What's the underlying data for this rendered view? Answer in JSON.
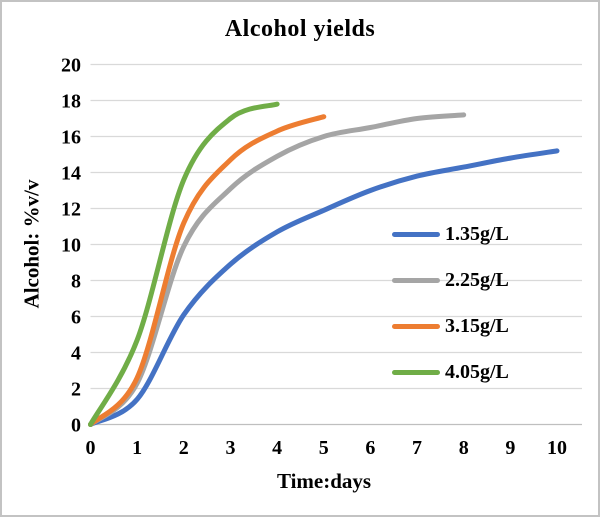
{
  "chart_data": {
    "type": "line",
    "title": "Alcohol yields",
    "xlabel": "Time:days",
    "ylabel": "Alcohol: %v/v",
    "xlim": [
      0,
      10.5
    ],
    "ylim": [
      0,
      20
    ],
    "x_ticks": [
      0,
      1,
      2,
      3,
      4,
      5,
      6,
      7,
      8,
      9,
      10
    ],
    "y_ticks": [
      0,
      2,
      4,
      6,
      8,
      10,
      12,
      14,
      16,
      18,
      20
    ],
    "grid": "horizontal",
    "grid_color": "#d9d9d9",
    "axis_line_color": "#bfbfbf",
    "legend_position": "inside-right",
    "series": [
      {
        "name": "1.35g/L",
        "color": "#4472C4",
        "x": [
          0,
          1,
          2,
          3,
          4,
          5,
          6,
          7,
          8,
          9,
          10
        ],
        "y": [
          0,
          1.4,
          6.1,
          8.9,
          10.7,
          11.9,
          13.0,
          13.8,
          14.3,
          14.8,
          15.2
        ]
      },
      {
        "name": "2.25g/L",
        "color": "#A5A5A5",
        "x": [
          0,
          1,
          2,
          3,
          4,
          5,
          6,
          7,
          8
        ],
        "y": [
          0,
          2.3,
          9.9,
          13.1,
          14.9,
          16.0,
          16.5,
          17.0,
          17.2
        ]
      },
      {
        "name": "3.15g/L",
        "color": "#ED7D31",
        "x": [
          0,
          1,
          2,
          3,
          4,
          5
        ],
        "y": [
          0,
          2.6,
          11.2,
          14.7,
          16.3,
          17.1
        ]
      },
      {
        "name": "4.05g/L",
        "color": "#70AD47",
        "x": [
          0,
          1,
          2,
          3,
          4
        ],
        "y": [
          0,
          4.7,
          13.6,
          17.0,
          17.8
        ]
      }
    ]
  }
}
